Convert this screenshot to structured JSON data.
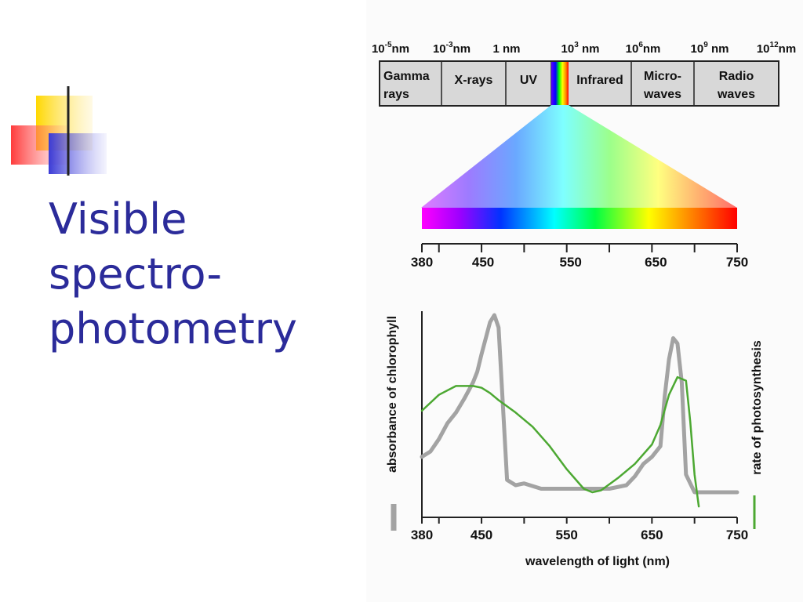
{
  "slide": {
    "title": "Visible\nspectro-\nphotometry"
  },
  "em_spectrum": {
    "scale_labels": [
      {
        "base": "10",
        "exp": "-5",
        "unit": "nm"
      },
      {
        "base": "10",
        "exp": "-3",
        "unit": "nm"
      },
      {
        "base": "1",
        "exp": "",
        "unit": " nm"
      },
      {
        "base": "10",
        "exp": "3",
        "unit": " nm"
      },
      {
        "base": "10",
        "exp": "6",
        "unit": "nm"
      },
      {
        "base": "10",
        "exp": "9",
        "unit": " nm"
      },
      {
        "base": "10",
        "exp": "12",
        "unit": "nm"
      }
    ],
    "regions": [
      {
        "line1": "Gamma",
        "line2": "rays"
      },
      {
        "line1": "X-rays",
        "line2": ""
      },
      {
        "line1": "UV",
        "line2": ""
      },
      {
        "line1": "Infrared",
        "line2": ""
      },
      {
        "line1": "Micro-",
        "line2": "waves"
      },
      {
        "line1": "Radio",
        "line2": "waves"
      }
    ]
  },
  "visible_band": {
    "ticks": [
      "380",
      "450",
      "550",
      "650",
      "750"
    ]
  },
  "chart_data": {
    "type": "line",
    "xlabel": "wavelength of light (nm)",
    "ylabel_left": "absorbance of chlorophyll",
    "ylabel_right": "rate of photosynthesis",
    "x_ticks": [
      "380",
      "450",
      "550",
      "650",
      "750"
    ],
    "xlim": [
      380,
      750
    ],
    "series": [
      {
        "color": "#a3a3a3",
        "legend_color": "#a3a3a3",
        "x": [
          380,
          390,
          400,
          410,
          420,
          430,
          440,
          445,
          450,
          455,
          460,
          465,
          470,
          475,
          480,
          490,
          500,
          520,
          560,
          600,
          620,
          630,
          640,
          650,
          660,
          665,
          670,
          675,
          680,
          685,
          690,
          700,
          720,
          750
        ],
        "y": [
          0.2,
          0.23,
          0.3,
          0.39,
          0.45,
          0.53,
          0.62,
          0.68,
          0.78,
          0.87,
          0.96,
          1.0,
          0.93,
          0.5,
          0.07,
          0.04,
          0.05,
          0.02,
          0.02,
          0.02,
          0.04,
          0.09,
          0.16,
          0.2,
          0.26,
          0.54,
          0.75,
          0.87,
          0.84,
          0.62,
          0.1,
          0.0,
          0.0,
          0.0
        ]
      },
      {
        "color": "#4ca832",
        "legend_color": "#4ca832",
        "x": [
          380,
          400,
          420,
          440,
          450,
          460,
          470,
          490,
          510,
          530,
          550,
          570,
          580,
          590,
          610,
          630,
          650,
          660,
          670,
          680,
          690,
          695,
          700,
          705
        ],
        "y": [
          0.46,
          0.55,
          0.6,
          0.6,
          0.59,
          0.56,
          0.52,
          0.45,
          0.37,
          0.26,
          0.13,
          0.02,
          0.0,
          0.01,
          0.08,
          0.16,
          0.27,
          0.38,
          0.55,
          0.65,
          0.63,
          0.4,
          0.1,
          -0.08
        ]
      }
    ]
  }
}
